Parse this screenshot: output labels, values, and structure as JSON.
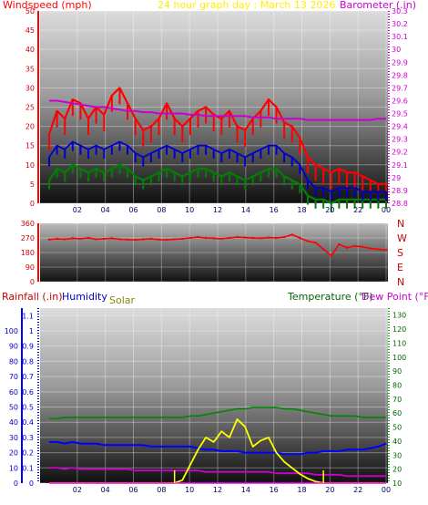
{
  "header": {
    "wind_label": "Windspeed (mph)",
    "title": "24 hour graph day : March 13 2026",
    "baro_label": "Barometer (.in)"
  },
  "lower_header": {
    "rain_label": "Rainfall (.in)",
    "humidity_label": "Humidity",
    "solar_label": "Solar",
    "temp_label": "Temperature (°F)",
    "dew_label": "Dew Point (°F)"
  },
  "colors": {
    "wind_axis": "#ff0000",
    "baro_axis": "#cc00cc",
    "title": "#ffee00",
    "rain_axis": "#0000ff",
    "temp_axis": "#007700",
    "solar": "#ffff00",
    "humidity": "#0000ff",
    "temperature": "#008800",
    "dewpoint": "#cc00cc",
    "wind_gust": "#ff0000",
    "wind_avg": "#0000cc",
    "wind_low": "#008000",
    "direction": "#ff0000",
    "barometer": "#cc00cc"
  },
  "chart_data": [
    {
      "type": "line",
      "name": "wind-barometer",
      "x_ticks": [
        "02",
        "04",
        "06",
        "08",
        "10",
        "12",
        "14",
        "16",
        "18",
        "20",
        "22",
        "00"
      ],
      "left_axis": {
        "label": "Windspeed (mph)",
        "ticks": [
          0,
          5,
          10,
          15,
          20,
          25,
          30,
          35,
          40,
          45,
          50
        ],
        "ylim": [
          0,
          50
        ]
      },
      "right_axis": {
        "label": "Barometer (.in)",
        "ticks": [
          "28.8",
          "28.9",
          "29",
          "29.1",
          "29.2",
          "29.3",
          "29.4",
          "29.5",
          "29.6",
          "29.7",
          "29.8",
          "29.9",
          "30",
          "30.1",
          "30.2",
          "30.3"
        ],
        "ylim": [
          28.8,
          30.3
        ]
      },
      "series": [
        {
          "key": "gust",
          "axis": "left",
          "values": [
            18,
            24,
            22,
            27,
            26,
            22,
            25,
            23,
            28,
            30,
            26,
            22,
            19,
            20,
            22,
            26,
            22,
            20,
            22,
            24,
            25,
            23,
            22,
            24,
            20,
            19,
            22,
            24,
            27,
            25,
            21,
            20,
            17,
            12,
            10,
            9,
            8,
            9,
            8,
            8,
            7,
            6,
            5,
            5
          ]
        },
        {
          "key": "avg",
          "axis": "left",
          "values": [
            12,
            15,
            14,
            16,
            15,
            14,
            15,
            14,
            15,
            16,
            15,
            13,
            12,
            13,
            14,
            15,
            14,
            13,
            14,
            15,
            15,
            14,
            13,
            14,
            13,
            12,
            13,
            14,
            15,
            15,
            13,
            12,
            10,
            6,
            4,
            4,
            3,
            4,
            4,
            4,
            3,
            3,
            3,
            3
          ]
        },
        {
          "key": "low",
          "axis": "left",
          "values": [
            6,
            9,
            8,
            10,
            9,
            8,
            9,
            8,
            9,
            10,
            9,
            7,
            6,
            7,
            8,
            9,
            8,
            7,
            8,
            9,
            9,
            8,
            7,
            8,
            7,
            6,
            7,
            8,
            9,
            9,
            7,
            6,
            5,
            2,
            1,
            1,
            0,
            1,
            1,
            1,
            1,
            1,
            1,
            1
          ]
        },
        {
          "key": "baro",
          "axis": "right",
          "values": [
            29.6,
            29.6,
            29.59,
            29.58,
            29.57,
            29.56,
            29.55,
            29.55,
            29.54,
            29.53,
            29.52,
            29.52,
            29.51,
            29.51,
            29.5,
            29.5,
            29.5,
            29.5,
            29.49,
            29.49,
            29.48,
            29.48,
            29.48,
            29.48,
            29.48,
            29.48,
            29.47,
            29.47,
            29.47,
            29.46,
            29.46,
            29.46,
            29.46,
            29.45,
            29.45,
            29.45,
            29.45,
            29.45,
            29.45,
            29.45,
            29.45,
            29.45,
            29.46,
            29.46
          ]
        }
      ]
    },
    {
      "type": "line",
      "name": "wind-direction",
      "x_ticks": [
        "02",
        "04",
        "06",
        "08",
        "10",
        "12",
        "14",
        "16",
        "18",
        "20",
        "22",
        "00"
      ],
      "left_axis": {
        "ticks": [
          0,
          90,
          180,
          270,
          360
        ],
        "ylim": [
          0,
          360
        ]
      },
      "compass": [
        "N",
        "W",
        "S",
        "E",
        "N"
      ],
      "series": [
        {
          "key": "direction",
          "values": [
            260,
            265,
            262,
            268,
            265,
            270,
            262,
            265,
            268,
            262,
            260,
            258,
            262,
            265,
            260,
            258,
            262,
            265,
            270,
            275,
            270,
            268,
            265,
            270,
            275,
            272,
            270,
            268,
            272,
            270,
            275,
            290,
            270,
            250,
            240,
            200,
            160,
            230,
            210,
            220,
            215,
            205,
            200,
            195
          ]
        }
      ]
    },
    {
      "type": "line",
      "name": "rain-humidity-solar-temp",
      "x_ticks": [
        "02",
        "04",
        "06",
        "08",
        "10",
        "12",
        "14",
        "16",
        "18",
        "20",
        "22",
        "00"
      ],
      "left_axis": {
        "label": "Rainfall (.in)",
        "ticks": [
          "0",
          "0.1",
          "0.2",
          "0.3",
          "0.4",
          "0.5",
          "0.6",
          "0.7",
          "0.8",
          "0.9",
          "1",
          "1.1"
        ],
        "ylim": [
          0,
          1.15
        ]
      },
      "humidity_axis": {
        "label": "Humidity",
        "ticks": [
          0,
          10,
          20,
          30,
          40,
          50,
          60,
          70,
          80,
          90,
          100
        ],
        "ylim": [
          0,
          115
        ]
      },
      "right_axis": {
        "label": "Temperature (°F)",
        "ticks": [
          10,
          20,
          30,
          40,
          50,
          60,
          70,
          80,
          90,
          100,
          110,
          120,
          130
        ],
        "ylim": [
          10,
          135
        ]
      },
      "series": [
        {
          "key": "temperature",
          "axis": "right",
          "values": [
            56,
            56,
            57,
            57,
            57,
            57,
            57,
            57,
            57,
            57,
            57,
            57,
            57,
            57,
            57,
            57,
            57,
            57,
            58,
            58,
            59,
            60,
            61,
            62,
            63,
            63,
            64,
            64,
            64,
            64,
            63,
            63,
            62,
            61,
            60,
            59,
            58,
            58,
            58,
            58,
            57,
            57,
            57,
            57
          ]
        },
        {
          "key": "humidity",
          "axis": "humidity",
          "values": [
            27,
            27,
            26,
            27,
            26,
            26,
            26,
            25,
            25,
            25,
            25,
            25,
            25,
            24,
            24,
            24,
            24,
            24,
            24,
            23,
            22,
            22,
            21,
            21,
            21,
            20,
            20,
            20,
            20,
            20,
            19,
            19,
            19,
            20,
            20,
            21,
            21,
            21,
            22,
            22,
            22,
            23,
            24,
            26
          ]
        },
        {
          "key": "dewpoint",
          "axis": "right",
          "values": [
            21,
            21,
            20,
            21,
            20,
            20,
            20,
            20,
            20,
            20,
            20,
            19,
            19,
            19,
            19,
            19,
            19,
            19,
            19,
            19,
            18,
            18,
            18,
            18,
            18,
            18,
            18,
            18,
            18,
            17,
            17,
            17,
            17,
            17,
            16,
            16,
            16,
            16,
            15,
            15,
            15,
            15,
            15,
            15
          ]
        },
        {
          "key": "solar",
          "axis": "left",
          "values": [
            0,
            0,
            0,
            0,
            0,
            0,
            0,
            0,
            0,
            0,
            0,
            0,
            0,
            0,
            0,
            0,
            0,
            0.02,
            0.12,
            0.22,
            0.3,
            0.27,
            0.34,
            0.3,
            0.42,
            0.37,
            0.24,
            0.28,
            0.3,
            0.2,
            0.14,
            0.1,
            0.06,
            0.03,
            0.01,
            0,
            0,
            0,
            0,
            0,
            0,
            0,
            0,
            0
          ]
        },
        {
          "key": "rainfall",
          "axis": "left",
          "values": [
            0,
            0,
            0,
            0,
            0,
            0,
            0,
            0,
            0,
            0,
            0,
            0,
            0,
            0,
            0,
            0,
            0,
            0,
            0,
            0,
            0,
            0,
            0,
            0,
            0,
            0,
            0,
            0,
            0,
            0,
            0,
            0,
            0,
            0,
            0,
            0,
            0,
            0,
            0,
            0,
            0,
            0,
            0,
            0
          ]
        }
      ]
    }
  ]
}
